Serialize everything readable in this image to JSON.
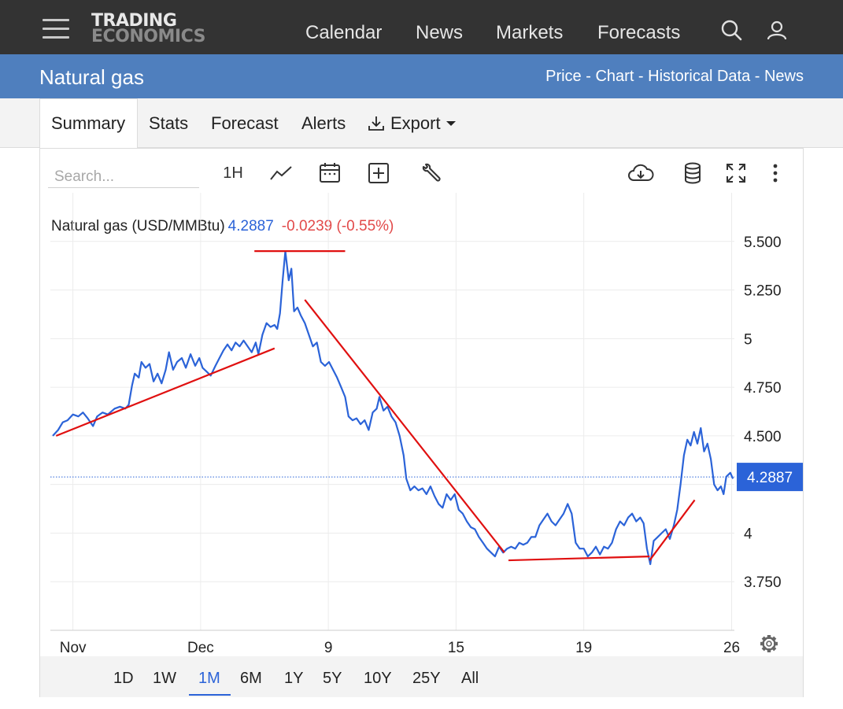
{
  "header": {
    "logo_line1": "TRADING",
    "logo_line2": "ECONOMICS",
    "nav": [
      "Calendar",
      "News",
      "Markets",
      "Forecasts"
    ]
  },
  "titlebar": {
    "title": "Natural gas",
    "links": [
      "Price",
      "Chart",
      "Historical Data",
      "News"
    ],
    "separator": " - "
  },
  "tabs": [
    "Summary",
    "Stats",
    "Forecast",
    "Alerts",
    "Export"
  ],
  "toolbar": {
    "search_placeholder": "Search...",
    "interval": "1H"
  },
  "legend": {
    "name": "Natural gas (USD/MMBtu)",
    "value": "4.2887",
    "change": "-0.0239 (-0.55%)"
  },
  "current_price_label": "4.2887",
  "periods": [
    "1D",
    "1W",
    "1M",
    "6M",
    "1Y",
    "5Y",
    "10Y",
    "25Y",
    "All"
  ],
  "active_period": "1M",
  "colors": {
    "topbar": "#333333",
    "titlebar": "#4f7fbe",
    "series": "#2b63d8",
    "trendlines": "#e01010",
    "price_tag": "#2b63d8",
    "change_negative": "#e24a4a"
  },
  "chart_data": {
    "type": "line",
    "y_ticks": [
      "5.500",
      "5.250",
      "5",
      "4.750",
      "4.500",
      "4",
      "3.750"
    ],
    "x_ticks": [
      "Nov",
      "Dec",
      "9",
      "15",
      "19",
      "26"
    ],
    "ylim": [
      3.5,
      5.75
    ],
    "x_domain": [
      0,
      100
    ],
    "current_value": 4.2887,
    "grid": true,
    "series": [
      {
        "points": [
          [
            0,
            4.5
          ],
          [
            0.8,
            4.53
          ],
          [
            1.5,
            4.57
          ],
          [
            2.2,
            4.58
          ],
          [
            3,
            4.61
          ],
          [
            3.8,
            4.6
          ],
          [
            4.5,
            4.62
          ],
          [
            5.2,
            4.59
          ],
          [
            6,
            4.55
          ],
          [
            6.6,
            4.6
          ],
          [
            7.4,
            4.62
          ],
          [
            8.2,
            4.61
          ],
          [
            9.2,
            4.64
          ],
          [
            10,
            4.65
          ],
          [
            10.8,
            4.64
          ],
          [
            11.3,
            4.66
          ],
          [
            11.8,
            4.76
          ],
          [
            12.2,
            4.82
          ],
          [
            12.8,
            4.8
          ],
          [
            13.2,
            4.88
          ],
          [
            13.8,
            4.85
          ],
          [
            14.4,
            4.87
          ],
          [
            15,
            4.78
          ],
          [
            15.6,
            4.82
          ],
          [
            16.2,
            4.77
          ],
          [
            16.8,
            4.84
          ],
          [
            17.3,
            4.93
          ],
          [
            17.9,
            4.84
          ],
          [
            18.5,
            4.88
          ],
          [
            19.2,
            4.9
          ],
          [
            19.8,
            4.85
          ],
          [
            20.5,
            4.92
          ],
          [
            21.2,
            4.86
          ],
          [
            21.8,
            4.9
          ],
          [
            22.3,
            4.85
          ],
          [
            22.9,
            4.83
          ],
          [
            23.5,
            4.81
          ],
          [
            24.2,
            4.86
          ],
          [
            24.8,
            4.9
          ],
          [
            25.4,
            4.94
          ],
          [
            26,
            4.97
          ],
          [
            26.6,
            4.94
          ],
          [
            27.2,
            4.98
          ],
          [
            27.8,
            4.96
          ],
          [
            28.4,
            4.99
          ],
          [
            29,
            4.96
          ],
          [
            29.6,
            4.93
          ],
          [
            30.2,
            4.98
          ],
          [
            30.6,
            4.92
          ],
          [
            31.2,
            5.02
          ],
          [
            31.8,
            5.08
          ],
          [
            32.4,
            5.06
          ],
          [
            33,
            5.07
          ],
          [
            33.4,
            5.05
          ],
          [
            33.8,
            5.13
          ],
          [
            34.2,
            5.3
          ],
          [
            34.6,
            5.45
          ],
          [
            35.1,
            5.3
          ],
          [
            35.5,
            5.36
          ],
          [
            35.9,
            5.14
          ],
          [
            36.4,
            5.16
          ],
          [
            36.9,
            5.12
          ],
          [
            37.5,
            5.08
          ],
          [
            38.1,
            5.02
          ],
          [
            38.7,
            4.96
          ],
          [
            39.3,
            4.98
          ],
          [
            39.9,
            4.88
          ],
          [
            40.5,
            4.86
          ],
          [
            41.1,
            4.88
          ],
          [
            41.7,
            4.84
          ],
          [
            42.3,
            4.8
          ],
          [
            42.9,
            4.75
          ],
          [
            43.5,
            4.7
          ],
          [
            44,
            4.6
          ],
          [
            44.6,
            4.58
          ],
          [
            45.2,
            4.59
          ],
          [
            45.8,
            4.56
          ],
          [
            46.4,
            4.58
          ],
          [
            47,
            4.53
          ],
          [
            47.6,
            4.62
          ],
          [
            48.2,
            4.64
          ],
          [
            48.6,
            4.7
          ],
          [
            49.2,
            4.63
          ],
          [
            49.8,
            4.65
          ],
          [
            50.4,
            4.6
          ],
          [
            51,
            4.57
          ],
          [
            51.6,
            4.5
          ],
          [
            52.2,
            4.4
          ],
          [
            52.6,
            4.28
          ],
          [
            53.2,
            4.22
          ],
          [
            53.8,
            4.24
          ],
          [
            54.4,
            4.22
          ],
          [
            55,
            4.23
          ],
          [
            55.6,
            4.2
          ],
          [
            56.2,
            4.24
          ],
          [
            56.8,
            4.19
          ],
          [
            57.4,
            4.15
          ],
          [
            58,
            4.13
          ],
          [
            58.6,
            4.2
          ],
          [
            59.2,
            4.17
          ],
          [
            59.8,
            4.2
          ],
          [
            60.4,
            4.12
          ],
          [
            61,
            4.1
          ],
          [
            61.6,
            4.06
          ],
          [
            62.2,
            4.03
          ],
          [
            62.8,
            4.02
          ],
          [
            63.4,
            3.98
          ],
          [
            64,
            3.95
          ],
          [
            64.6,
            3.92
          ],
          [
            65.2,
            3.9
          ],
          [
            65.8,
            3.88
          ],
          [
            66.4,
            3.93
          ],
          [
            67,
            3.9
          ],
          [
            67.6,
            3.92
          ],
          [
            68.2,
            3.93
          ],
          [
            68.8,
            3.92
          ],
          [
            69.4,
            3.95
          ],
          [
            70,
            3.94
          ],
          [
            70.6,
            3.95
          ],
          [
            71.2,
            3.98
          ],
          [
            71.8,
            3.98
          ],
          [
            72.4,
            4.04
          ],
          [
            73,
            4.07
          ],
          [
            73.6,
            4.1
          ],
          [
            74.2,
            4.06
          ],
          [
            74.8,
            4.04
          ],
          [
            75.4,
            4.07
          ],
          [
            76,
            4.1
          ],
          [
            76.6,
            4.15
          ],
          [
            77.2,
            4.1
          ],
          [
            77.8,
            3.95
          ],
          [
            78.4,
            3.92
          ],
          [
            79,
            3.92
          ],
          [
            79.6,
            3.88
          ],
          [
            80.2,
            3.9
          ],
          [
            80.8,
            3.93
          ],
          [
            81.4,
            3.89
          ],
          [
            82,
            3.93
          ],
          [
            82.6,
            3.92
          ],
          [
            83.2,
            3.95
          ],
          [
            83.8,
            4.02
          ],
          [
            84.4,
            4.06
          ],
          [
            85,
            4.04
          ],
          [
            85.6,
            4.08
          ],
          [
            86.2,
            4.1
          ],
          [
            86.8,
            4.06
          ],
          [
            87.4,
            4.08
          ],
          [
            87.9,
            4.05
          ],
          [
            88.4,
            3.92
          ],
          [
            88.9,
            3.84
          ],
          [
            89.4,
            3.96
          ],
          [
            90,
            3.98
          ],
          [
            90.6,
            4.0
          ],
          [
            91.2,
            4.02
          ],
          [
            91.8,
            3.97
          ],
          [
            92.4,
            4.04
          ],
          [
            92.9,
            4.12
          ],
          [
            93.4,
            4.25
          ],
          [
            93.9,
            4.4
          ],
          [
            94.4,
            4.48
          ],
          [
            94.9,
            4.45
          ],
          [
            95.4,
            4.52
          ],
          [
            95.9,
            4.46
          ],
          [
            96.4,
            4.54
          ],
          [
            96.9,
            4.42
          ],
          [
            97.4,
            4.46
          ],
          [
            97.9,
            4.38
          ],
          [
            98.4,
            4.25
          ],
          [
            98.9,
            4.22
          ],
          [
            99.4,
            4.24
          ],
          [
            99.8,
            4.2
          ],
          [
            100.2,
            4.29
          ],
          [
            100.8,
            4.31
          ],
          [
            101.2,
            4.28
          ]
        ]
      }
    ],
    "annotations": [
      {
        "type": "trendline",
        "from": [
          0.5,
          4.5
        ],
        "to": [
          33,
          4.95
        ]
      },
      {
        "type": "trendline",
        "from": [
          30,
          5.45
        ],
        "to": [
          43.5,
          5.45
        ]
      },
      {
        "type": "trendline",
        "from": [
          37.5,
          5.2
        ],
        "to": [
          67.2,
          3.9
        ]
      },
      {
        "type": "trendline",
        "from": [
          67.8,
          3.86
        ],
        "to": [
          88.8,
          3.88
        ]
      },
      {
        "type": "trendline",
        "from": [
          88.8,
          3.86
        ],
        "to": [
          95.5,
          4.17
        ]
      }
    ]
  }
}
